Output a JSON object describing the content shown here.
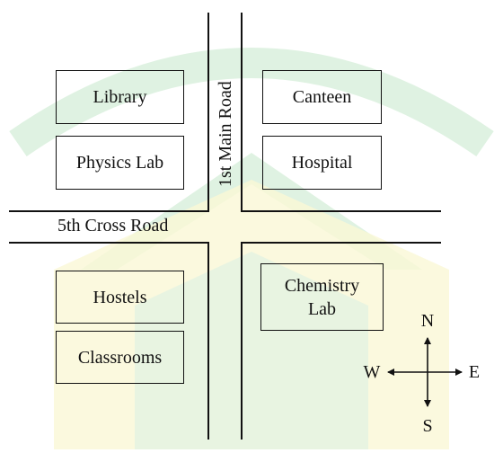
{
  "diagram": {
    "roads": {
      "main_road": "1st Main Road",
      "cross_road": "5th Cross Road"
    },
    "buildings": {
      "library": "Library",
      "physics_lab": "Physics Lab",
      "canteen": "Canteen",
      "hospital": "Hospital",
      "hostels": "Hostels",
      "classrooms": "Classrooms",
      "chemistry_lab": "Chemistry\nLab"
    },
    "compass": {
      "north": "N",
      "south": "S",
      "east": "E",
      "west": "W"
    },
    "colors": {
      "watermark_green": "#d8f0dc",
      "watermark_yellow": "#f8f6cc",
      "ink": "#111111"
    }
  }
}
